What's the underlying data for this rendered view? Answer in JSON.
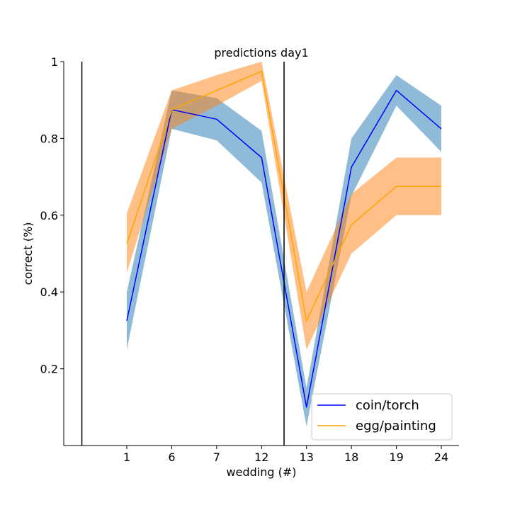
{
  "chart_data": {
    "type": "line",
    "title": "predictions day1",
    "xlabel": "wedding (#)",
    "ylabel": "correct (%)",
    "categories": [
      "1",
      "6",
      "7",
      "12",
      "13",
      "18",
      "19",
      "24"
    ],
    "ylim": [
      0,
      1
    ],
    "yticks": [
      {
        "value": 0.2,
        "label": "0.2"
      },
      {
        "value": 0.4,
        "label": "0.4"
      },
      {
        "value": 0.6,
        "label": "0.6"
      },
      {
        "value": 0.8,
        "label": "0.8"
      },
      {
        "value": 1.0,
        "label": "1"
      }
    ],
    "vlines": [
      -1,
      3.5
    ],
    "grid": false,
    "legend_position": "bottom-right",
    "series": [
      {
        "name": "coin/torch",
        "color": "#0000ff",
        "band_color": "#1f77b4",
        "values": [
          0.325,
          0.875,
          0.85,
          0.75,
          0.1,
          0.725,
          0.925,
          0.825
        ],
        "lower": [
          0.25,
          0.825,
          0.795,
          0.685,
          0.05,
          0.65,
          0.885,
          0.765
        ],
        "upper": [
          0.4,
          0.925,
          0.905,
          0.82,
          0.15,
          0.8,
          0.965,
          0.885
        ]
      },
      {
        "name": "egg/painting",
        "color": "#ffa500",
        "band_color": "#ff7f0e",
        "values": [
          0.525,
          0.875,
          0.925,
          0.975,
          0.325,
          0.575,
          0.675,
          0.675
        ],
        "lower": [
          0.45,
          0.825,
          0.885,
          0.95,
          0.25,
          0.5,
          0.6,
          0.6
        ],
        "upper": [
          0.605,
          0.925,
          0.965,
          1.0,
          0.4,
          0.655,
          0.75,
          0.75
        ]
      }
    ]
  }
}
